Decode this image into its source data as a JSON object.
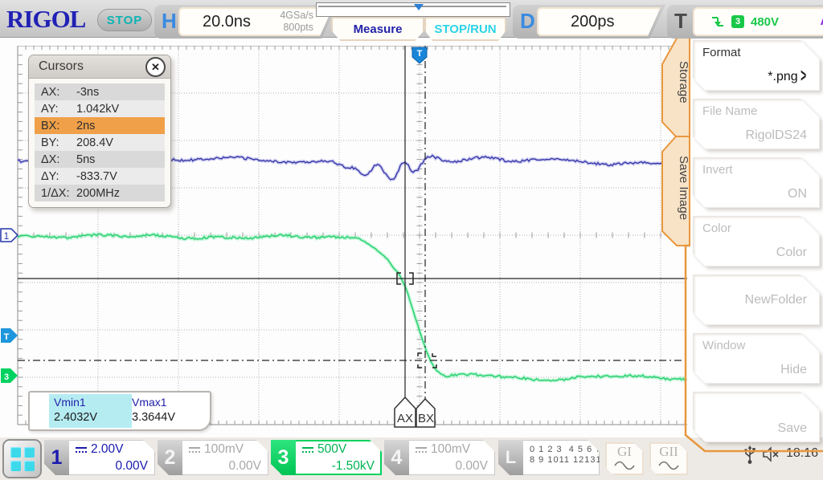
{
  "header": {
    "logo": "RIGOL",
    "run_state": "STOP",
    "horizontal": {
      "label": "H",
      "timebase": "20.0ns",
      "sample_rate": "4GSa/s",
      "mem_depth": "800pts"
    },
    "measure_label": "Measure",
    "stoprun_label": "STOP/RUN",
    "delay": {
      "label": "D",
      "value": "200ps"
    },
    "trigger": {
      "label": "T",
      "source_channel": "3",
      "level": "480V",
      "mode": "A"
    }
  },
  "cursors_panel": {
    "title": "Cursors",
    "close_icon": "✕",
    "rows": [
      {
        "label": "AX:",
        "value": "-3ns"
      },
      {
        "label": "AY:",
        "value": "1.042kV"
      },
      {
        "label": "BX:",
        "value": "2ns"
      },
      {
        "label": "BY:",
        "value": "208.4V"
      },
      {
        "label": "ΔX:",
        "value": "5ns"
      },
      {
        "label": "ΔY:",
        "value": "-833.7V"
      },
      {
        "label": "1/ΔX:",
        "value": "200MHz"
      }
    ]
  },
  "measurements": [
    {
      "name": "Vmin1",
      "value": "2.4032V"
    },
    {
      "name": "Vmax1",
      "value": "3.3644V"
    }
  ],
  "cursor_flags": {
    "ax": "AX",
    "bx": "BX"
  },
  "left_markers": {
    "ch1": "1",
    "trigger": "T",
    "ch3": "3"
  },
  "sidebar": {
    "tabs": [
      {
        "label": "Storage"
      },
      {
        "label": "Save Image"
      }
    ],
    "items": [
      {
        "label": "Format",
        "value": "*.png",
        "arrow": ">"
      },
      {
        "label": "File Name",
        "value": "RigolDS24"
      },
      {
        "label": "Invert",
        "value": "ON"
      },
      {
        "label": "Color",
        "value": "Color"
      },
      {
        "label": "",
        "value": "NewFolder"
      },
      {
        "label": "Window",
        "value": "Hide"
      },
      {
        "label": "",
        "value": "Save"
      }
    ]
  },
  "channels": [
    {
      "id": "1",
      "scale": "2.00V",
      "offset": "0.00V"
    },
    {
      "id": "2",
      "scale": "100mV",
      "offset": "0.00V"
    },
    {
      "id": "3",
      "scale": "500V",
      "offset": "-1.50kV"
    },
    {
      "id": "4",
      "scale": "100mV",
      "offset": "0.00V"
    }
  ],
  "logic": {
    "label": "L",
    "row1": "0 1 2 3  4 5 6 7",
    "row2": "8 9 1011 12131415"
  },
  "generators": [
    {
      "label": "GI"
    },
    {
      "label": "GII"
    }
  ],
  "status": {
    "time": "18:16"
  },
  "colors": {
    "ch1_trace": "#2a2aa0",
    "ch3_trace": "#25cf6e",
    "accent_orange": "#e8973f",
    "trigger_green": "#18c848",
    "trigger_mode_purple": "#8a2be2",
    "selected_meas_cyan": "#b5ecf2",
    "highlight_row_orange": "#f0a049"
  }
}
